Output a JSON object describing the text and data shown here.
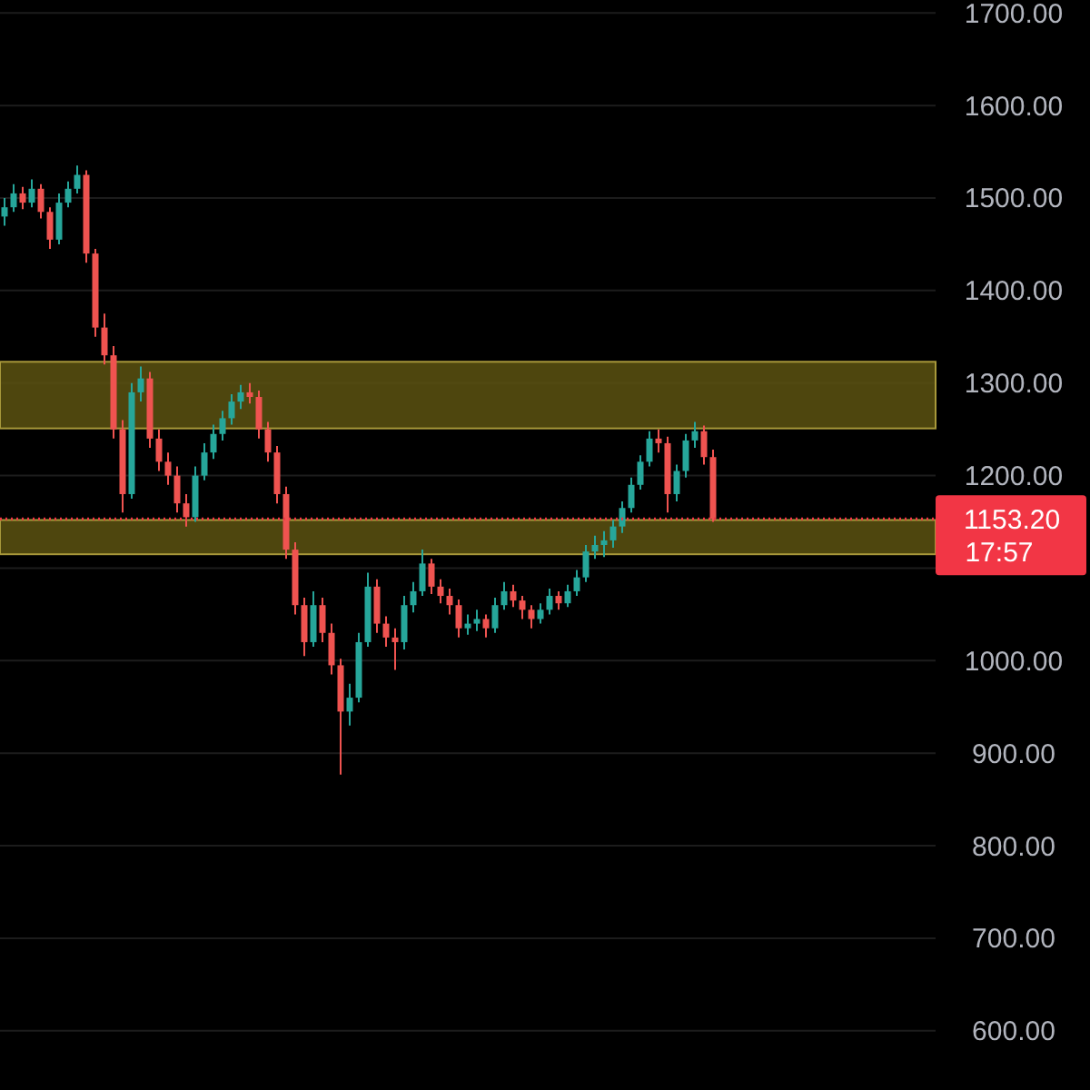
{
  "chart_data": {
    "type": "candlestick",
    "categories": [
      null,
      null,
      null,
      null,
      null,
      null,
      null,
      null,
      null,
      null,
      null,
      null,
      null,
      null,
      null,
      null,
      null,
      null,
      null,
      null,
      null,
      null,
      null,
      null,
      null,
      null,
      null,
      null,
      null,
      null,
      null,
      null,
      null,
      null,
      null,
      null,
      null,
      null,
      null,
      null,
      null,
      null,
      null,
      null,
      null,
      null,
      null,
      null,
      null,
      null,
      null,
      null,
      null,
      null,
      null,
      null,
      null,
      null,
      null,
      null,
      null,
      null,
      null,
      null,
      null,
      null,
      null,
      null,
      null,
      null,
      null,
      null,
      null,
      null,
      null,
      null,
      null,
      null,
      null,
      null,
      null,
      null,
      null,
      null,
      null,
      null,
      null,
      null,
      null,
      null,
      null,
      null,
      null,
      null,
      null,
      null,
      null,
      null,
      null,
      null,
      null,
      null,
      null
    ],
    "ohlc": [
      [
        1480,
        1500,
        1470,
        1490
      ],
      [
        1490,
        1515,
        1485,
        1505
      ],
      [
        1505,
        1512,
        1488,
        1495
      ],
      [
        1495,
        1520,
        1490,
        1510
      ],
      [
        1510,
        1515,
        1478,
        1485
      ],
      [
        1485,
        1490,
        1445,
        1455
      ],
      [
        1455,
        1505,
        1450,
        1495
      ],
      [
        1495,
        1518,
        1490,
        1510
      ],
      [
        1510,
        1535,
        1505,
        1525
      ],
      [
        1525,
        1530,
        1430,
        1440
      ],
      [
        1440,
        1445,
        1350,
        1360
      ],
      [
        1360,
        1375,
        1320,
        1330
      ],
      [
        1330,
        1340,
        1240,
        1250
      ],
      [
        1250,
        1260,
        1160,
        1180
      ],
      [
        1180,
        1300,
        1175,
        1290
      ],
      [
        1290,
        1318,
        1280,
        1305
      ],
      [
        1305,
        1312,
        1230,
        1240
      ],
      [
        1240,
        1250,
        1205,
        1215
      ],
      [
        1215,
        1225,
        1190,
        1200
      ],
      [
        1200,
        1210,
        1160,
        1170
      ],
      [
        1170,
        1180,
        1145,
        1155
      ],
      [
        1155,
        1210,
        1150,
        1200
      ],
      [
        1200,
        1235,
        1195,
        1225
      ],
      [
        1225,
        1255,
        1218,
        1245
      ],
      [
        1245,
        1270,
        1238,
        1262
      ],
      [
        1262,
        1288,
        1255,
        1280
      ],
      [
        1280,
        1298,
        1272,
        1290
      ],
      [
        1290,
        1300,
        1278,
        1285
      ],
      [
        1285,
        1292,
        1240,
        1250
      ],
      [
        1250,
        1258,
        1215,
        1225
      ],
      [
        1225,
        1232,
        1170,
        1180
      ],
      [
        1180,
        1188,
        1110,
        1120
      ],
      [
        1120,
        1128,
        1050,
        1060
      ],
      [
        1060,
        1068,
        1005,
        1020
      ],
      [
        1020,
        1075,
        1015,
        1060
      ],
      [
        1060,
        1068,
        1020,
        1030
      ],
      [
        1030,
        1040,
        985,
        995
      ],
      [
        995,
        1002,
        877,
        945
      ],
      [
        945,
        975,
        930,
        960
      ],
      [
        960,
        1030,
        955,
        1020
      ],
      [
        1020,
        1095,
        1015,
        1080
      ],
      [
        1080,
        1088,
        1030,
        1040
      ],
      [
        1040,
        1048,
        1015,
        1025
      ],
      [
        1025,
        1035,
        990,
        1020
      ],
      [
        1020,
        1070,
        1012,
        1060
      ],
      [
        1060,
        1085,
        1052,
        1075
      ],
      [
        1075,
        1120,
        1070,
        1105
      ],
      [
        1105,
        1110,
        1072,
        1080
      ],
      [
        1080,
        1088,
        1062,
        1070
      ],
      [
        1070,
        1078,
        1050,
        1060
      ],
      [
        1060,
        1066,
        1025,
        1035
      ],
      [
        1035,
        1050,
        1028,
        1040
      ],
      [
        1040,
        1055,
        1032,
        1045
      ],
      [
        1045,
        1050,
        1025,
        1035
      ],
      [
        1035,
        1068,
        1030,
        1060
      ],
      [
        1060,
        1085,
        1055,
        1075
      ],
      [
        1075,
        1082,
        1058,
        1065
      ],
      [
        1065,
        1070,
        1045,
        1055
      ],
      [
        1055,
        1060,
        1035,
        1045
      ],
      [
        1045,
        1062,
        1040,
        1055
      ],
      [
        1055,
        1078,
        1050,
        1070
      ],
      [
        1070,
        1075,
        1055,
        1062
      ],
      [
        1062,
        1082,
        1058,
        1075
      ],
      [
        1075,
        1098,
        1070,
        1090
      ],
      [
        1090,
        1125,
        1085,
        1118
      ],
      [
        1118,
        1135,
        1110,
        1125
      ],
      [
        1125,
        1140,
        1112,
        1130
      ],
      [
        1130,
        1152,
        1122,
        1145
      ],
      [
        1145,
        1172,
        1138,
        1165
      ],
      [
        1165,
        1198,
        1160,
        1190
      ],
      [
        1190,
        1222,
        1185,
        1215
      ],
      [
        1215,
        1248,
        1210,
        1240
      ],
      [
        1240,
        1250,
        1225,
        1235
      ],
      [
        1235,
        1242,
        1160,
        1180
      ],
      [
        1180,
        1212,
        1172,
        1205
      ],
      [
        1205,
        1245,
        1198,
        1238
      ],
      [
        1238,
        1258,
        1230,
        1248
      ],
      [
        1248,
        1254,
        1212,
        1220
      ],
      [
        1220,
        1228,
        1150,
        1153.2
      ],
      null,
      null,
      null,
      null,
      null,
      null,
      null,
      null,
      null,
      null,
      null,
      null,
      null,
      null,
      null,
      null,
      null,
      null,
      null,
      null,
      null,
      null,
      null,
      null
    ],
    "ylim": [
      536,
      1714
    ],
    "yticks": [
      {
        "value": 600,
        "label": "600.00"
      },
      {
        "value": 700,
        "label": "700.00"
      },
      {
        "value": 800,
        "label": "800.00"
      },
      {
        "value": 900,
        "label": "900.00"
      },
      {
        "value": 1000,
        "label": "1000.00"
      },
      {
        "value": 1100,
        "label": null
      },
      {
        "value": 1200,
        "label": "1200.00"
      },
      {
        "value": 1300,
        "label": "1300.00"
      },
      {
        "value": 1400,
        "label": "1400.00"
      },
      {
        "value": 1500,
        "label": "1500.00"
      },
      {
        "value": 1600,
        "label": "1600.00"
      },
      {
        "value": 1700,
        "label": "1700.00"
      }
    ],
    "grid": "y",
    "tick_labels": "y",
    "bands": [
      {
        "axis": "y",
        "from": 1251,
        "to": 1323,
        "color": "#5c5210"
      },
      {
        "axis": "y",
        "from": 1115,
        "to": 1152,
        "color": "#5c5210"
      }
    ],
    "ref_lines": [
      {
        "axis": "y",
        "value": 1153.2,
        "label": "1153.20",
        "color": "#f23645",
        "line_style": "dotted"
      }
    ],
    "annotations": [
      "17:57"
    ]
  }
}
